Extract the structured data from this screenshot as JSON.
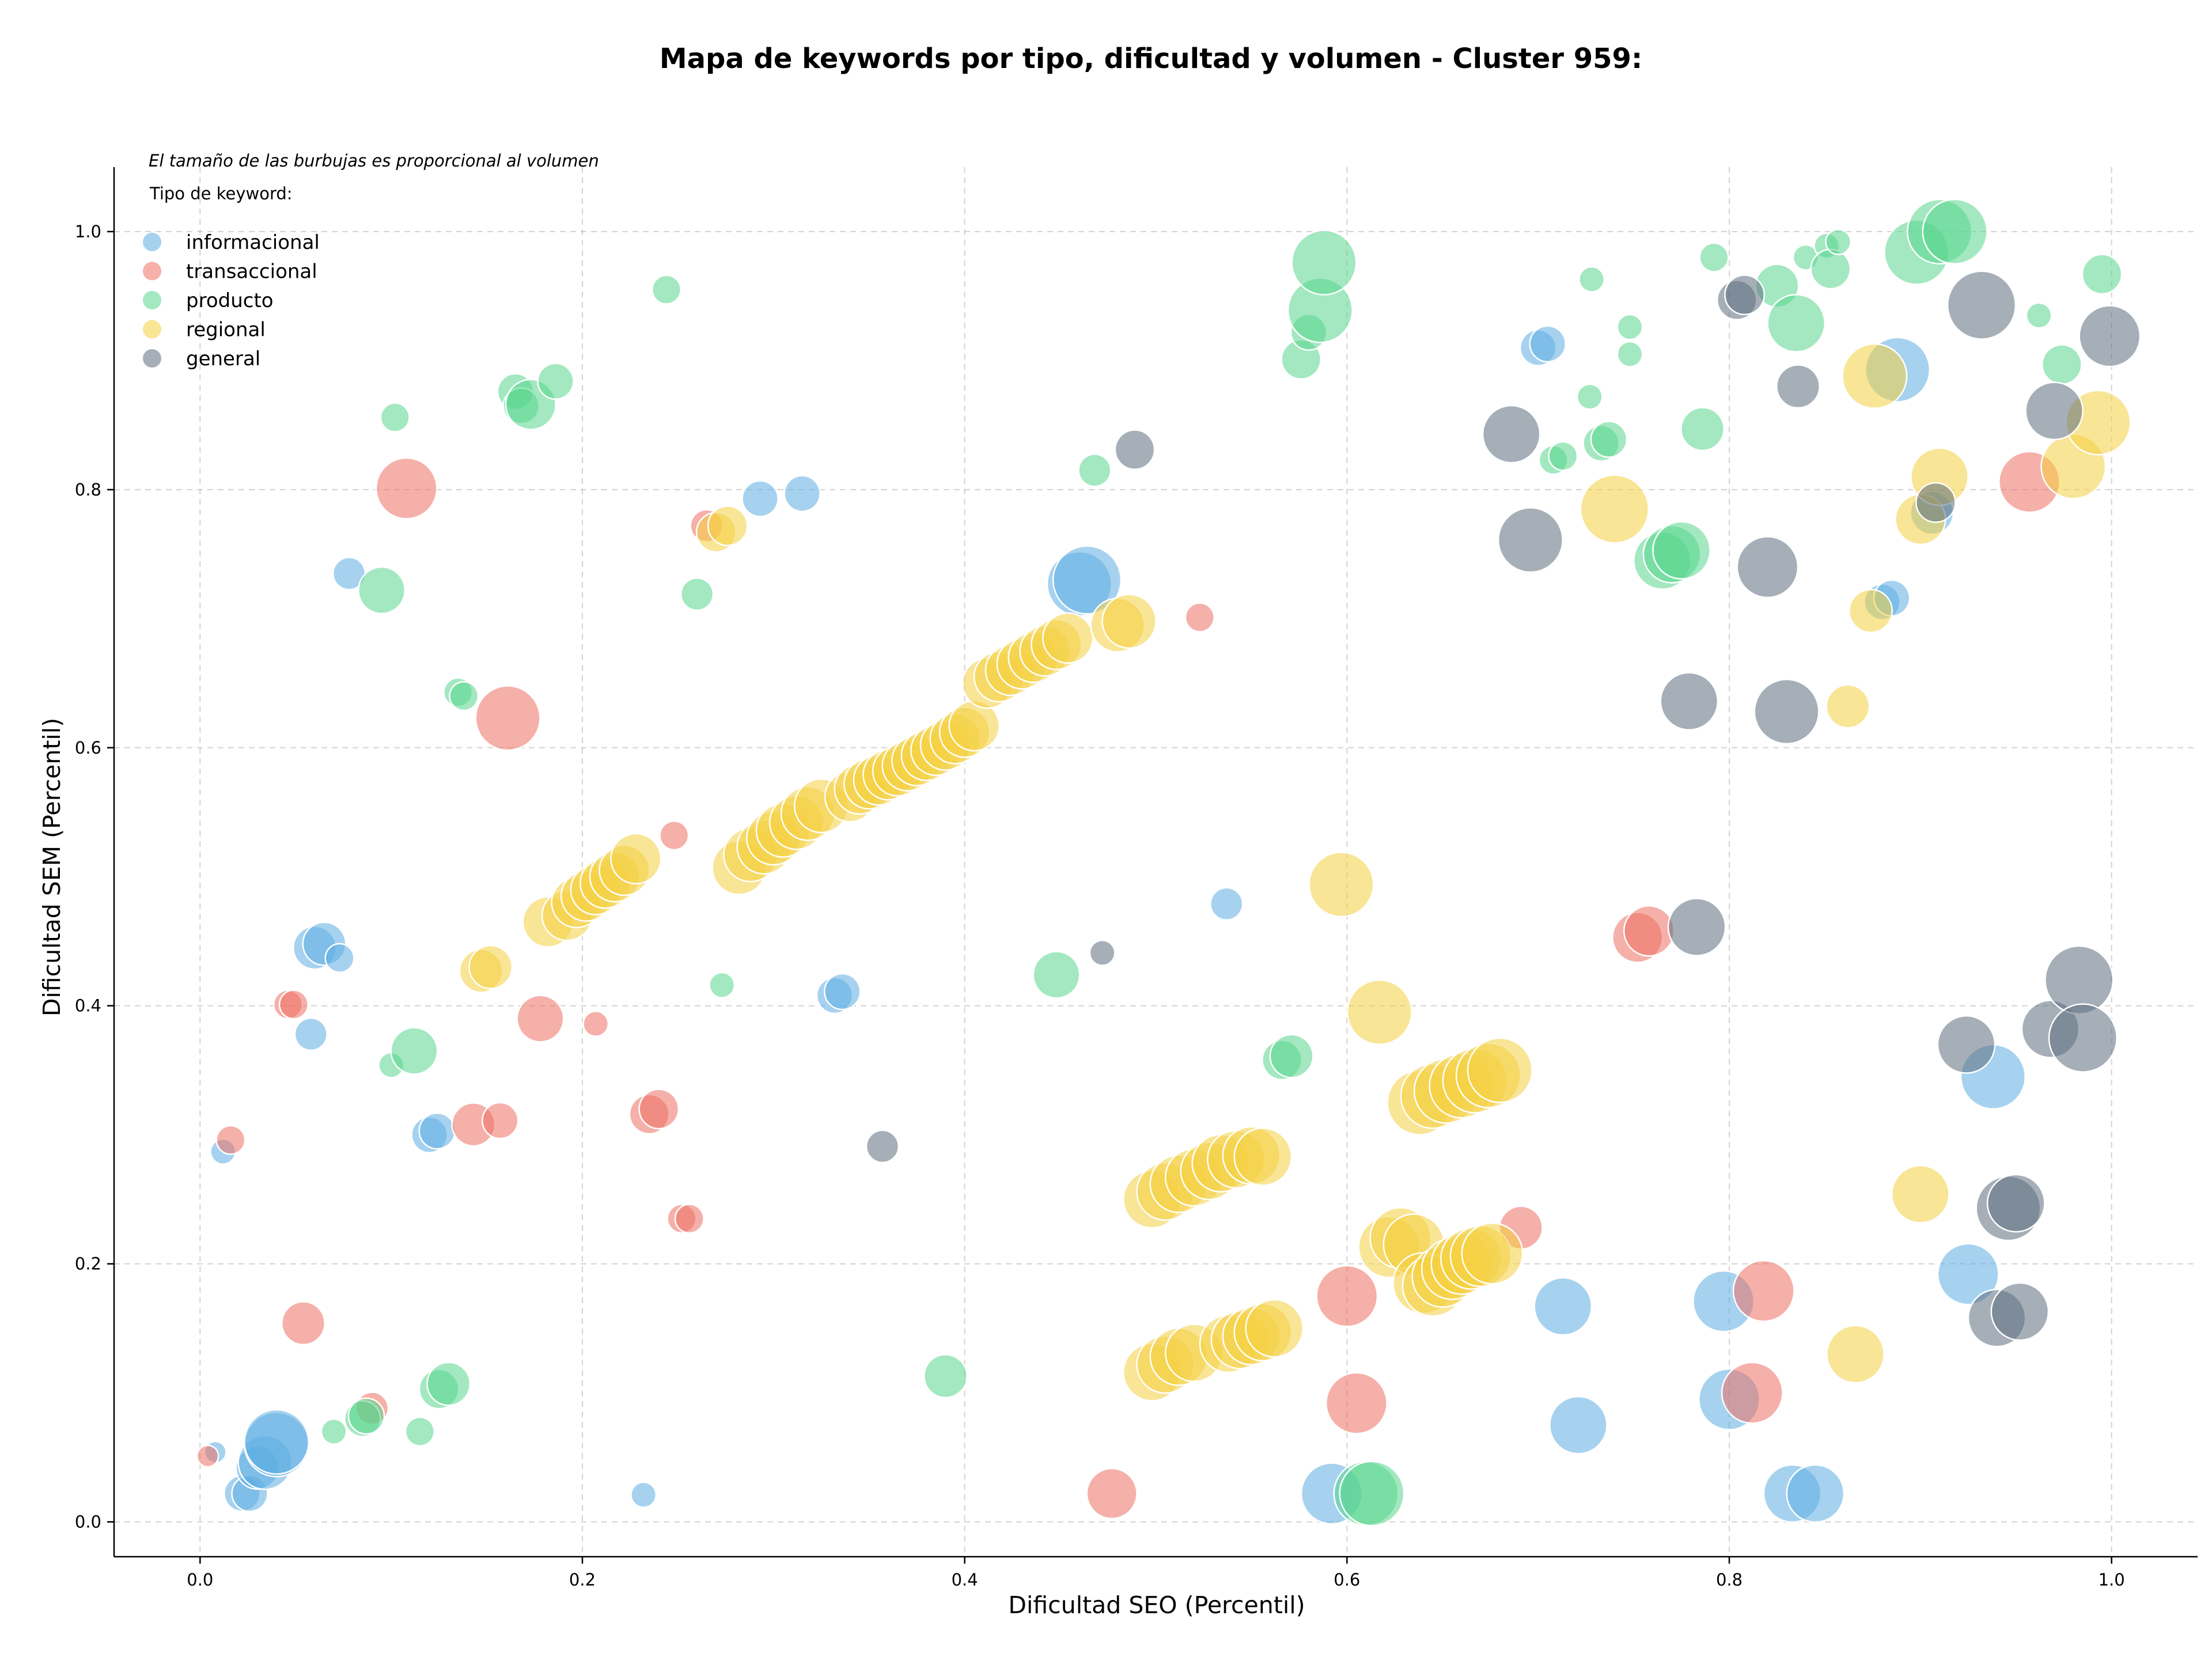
{
  "chart_data": {
    "type": "scatter",
    "title": "Mapa de keywords por tipo, dificultad y volumen - Cluster 959:",
    "xlabel": "Dificultad SEO (Percentil)",
    "ylabel": "Dificultad SEM (Percentil)",
    "xlim": [
      -0.045,
      1.045
    ],
    "ylim": [
      -0.027,
      1.05
    ],
    "x_ticks": [
      "0.0",
      "0.2",
      "0.4",
      "0.6",
      "0.8",
      "1.0"
    ],
    "y_ticks": [
      "0.0",
      "0.2",
      "0.4",
      "0.6",
      "0.8",
      "1.0"
    ],
    "grid": true,
    "legend_position": "top-left",
    "legend_note": "El tamaño de las burbujas es proporcional al volumen",
    "legend_title": "Tipo de keyword:",
    "bubble_alpha": 0.55,
    "series": [
      {
        "name": "informacional",
        "color": "#5DADE2",
        "points": [
          [
            0.008,
            0.054,
            3
          ],
          [
            0.012,
            0.287,
            3.5
          ],
          [
            0.022,
            0.022,
            5
          ],
          [
            0.026,
            0.022,
            5
          ],
          [
            0.03,
            0.042,
            6
          ],
          [
            0.034,
            0.046,
            7.5
          ],
          [
            0.04,
            0.06,
            9
          ],
          [
            0.04,
            0.062,
            9
          ],
          [
            0.06,
            0.445,
            6
          ],
          [
            0.065,
            0.448,
            6
          ],
          [
            0.073,
            0.437,
            4
          ],
          [
            0.058,
            0.378,
            4.5
          ],
          [
            0.078,
            0.735,
            4.5
          ],
          [
            0.12,
            0.3,
            5
          ],
          [
            0.124,
            0.303,
            5
          ],
          [
            0.232,
            0.021,
            3.5
          ],
          [
            0.293,
            0.793,
            5
          ],
          [
            0.315,
            0.797,
            5
          ],
          [
            0.332,
            0.408,
            5
          ],
          [
            0.336,
            0.411,
            5
          ],
          [
            0.46,
            0.727,
            9
          ],
          [
            0.464,
            0.73,
            9.5
          ],
          [
            0.537,
            0.479,
            4.5
          ],
          [
            0.7,
            0.91,
            5
          ],
          [
            0.705,
            0.913,
            5
          ],
          [
            0.713,
            0.167,
            8
          ],
          [
            0.721,
            0.075,
            8
          ],
          [
            0.592,
            0.022,
            8.5
          ],
          [
            0.797,
            0.171,
            8.5
          ],
          [
            0.8,
            0.095,
            8.5
          ],
          [
            0.833,
            0.022,
            8
          ],
          [
            0.845,
            0.022,
            8
          ],
          [
            0.88,
            0.713,
            5
          ],
          [
            0.885,
            0.716,
            5
          ],
          [
            0.888,
            0.893,
            9
          ],
          [
            0.906,
            0.782,
            6
          ],
          [
            0.925,
            0.192,
            8.5
          ],
          [
            0.938,
            0.345,
            9
          ]
        ]
      },
      {
        "name": "transaccional",
        "color": "#EC7063",
        "points": [
          [
            0.004,
            0.051,
            3
          ],
          [
            0.016,
            0.296,
            4
          ],
          [
            0.054,
            0.154,
            6
          ],
          [
            0.046,
            0.401,
            4
          ],
          [
            0.049,
            0.401,
            4
          ],
          [
            0.09,
            0.088,
            4.5
          ],
          [
            0.108,
            0.801,
            8.5
          ],
          [
            0.143,
            0.308,
            6
          ],
          [
            0.157,
            0.311,
            5
          ],
          [
            0.161,
            0.623,
            9
          ],
          [
            0.178,
            0.39,
            6.5
          ],
          [
            0.207,
            0.386,
            3.5
          ],
          [
            0.235,
            0.316,
            5.5
          ],
          [
            0.24,
            0.32,
            5.5
          ],
          [
            0.248,
            0.532,
            4
          ],
          [
            0.252,
            0.235,
            4
          ],
          [
            0.256,
            0.235,
            4
          ],
          [
            0.265,
            0.772,
            4.5
          ],
          [
            0.477,
            0.022,
            7
          ],
          [
            0.523,
            0.701,
            4
          ],
          [
            0.6,
            0.175,
            8.5
          ],
          [
            0.605,
            0.092,
            8.5
          ],
          [
            0.691,
            0.228,
            6
          ],
          [
            0.752,
            0.453,
            7
          ],
          [
            0.758,
            0.458,
            7
          ],
          [
            0.812,
            0.1,
            8.5
          ],
          [
            0.818,
            0.179,
            8.5
          ],
          [
            0.957,
            0.806,
            8.5
          ]
        ]
      },
      {
        "name": "producto",
        "color": "#58D68D",
        "points": [
          [
            0.07,
            0.07,
            3.5
          ],
          [
            0.085,
            0.08,
            5
          ],
          [
            0.087,
            0.082,
            5
          ],
          [
            0.1,
            0.354,
            3.5
          ],
          [
            0.102,
            0.856,
            4
          ],
          [
            0.095,
            0.722,
            6.5
          ],
          [
            0.112,
            0.365,
            6.5
          ],
          [
            0.115,
            0.07,
            4
          ],
          [
            0.125,
            0.103,
            5.5
          ],
          [
            0.13,
            0.107,
            6
          ],
          [
            0.135,
            0.643,
            4
          ],
          [
            0.138,
            0.64,
            4
          ],
          [
            0.165,
            0.876,
            5
          ],
          [
            0.168,
            0.865,
            5
          ],
          [
            0.173,
            0.866,
            7
          ],
          [
            0.186,
            0.884,
            5
          ],
          [
            0.244,
            0.955,
            4
          ],
          [
            0.26,
            0.719,
            4.5
          ],
          [
            0.273,
            0.416,
            3.5
          ],
          [
            0.39,
            0.113,
            6
          ],
          [
            0.448,
            0.424,
            6.5
          ],
          [
            0.468,
            0.815,
            4.5
          ],
          [
            0.566,
            0.358,
            5.5
          ],
          [
            0.571,
            0.361,
            6
          ],
          [
            0.576,
            0.901,
            5.5
          ],
          [
            0.58,
            0.922,
            5
          ],
          [
            0.586,
            0.939,
            9
          ],
          [
            0.588,
            0.976,
            9
          ],
          [
            0.61,
            0.022,
            9
          ],
          [
            0.613,
            0.022,
            9
          ],
          [
            0.708,
            0.823,
            4
          ],
          [
            0.713,
            0.826,
            4
          ],
          [
            0.727,
            0.872,
            3.5
          ],
          [
            0.728,
            0.963,
            3.5
          ],
          [
            0.733,
            0.836,
            5
          ],
          [
            0.737,
            0.839,
            5
          ],
          [
            0.748,
            0.926,
            3.5
          ],
          [
            0.748,
            0.905,
            3.5
          ],
          [
            0.765,
            0.745,
            8
          ],
          [
            0.77,
            0.75,
            8
          ],
          [
            0.775,
            0.753,
            8
          ],
          [
            0.786,
            0.847,
            6
          ],
          [
            0.792,
            0.98,
            4
          ],
          [
            0.825,
            0.958,
            6
          ],
          [
            0.835,
            0.929,
            8
          ],
          [
            0.84,
            0.98,
            3.5
          ],
          [
            0.851,
            0.989,
            3.5
          ],
          [
            0.853,
            0.971,
            5.5
          ],
          [
            0.857,
            0.992,
            3.5
          ],
          [
            0.898,
            0.984,
            9
          ],
          [
            0.91,
            1.0,
            9
          ],
          [
            0.918,
            1.0,
            9
          ],
          [
            0.962,
            0.935,
            3.5
          ],
          [
            0.974,
            0.897,
            5.5
          ],
          [
            0.995,
            0.967,
            5.5
          ]
        ]
      },
      {
        "name": "regional",
        "color": "#F4D03F",
        "points": [
          [
            0.147,
            0.427,
            6
          ],
          [
            0.152,
            0.43,
            6
          ],
          [
            0.182,
            0.465,
            7
          ],
          [
            0.192,
            0.47,
            7
          ],
          [
            0.197,
            0.48,
            7
          ],
          [
            0.202,
            0.485,
            7
          ],
          [
            0.207,
            0.49,
            7
          ],
          [
            0.212,
            0.495,
            7
          ],
          [
            0.217,
            0.5,
            7
          ],
          [
            0.222,
            0.505,
            7
          ],
          [
            0.228,
            0.514,
            7
          ],
          [
            0.27,
            0.767,
            5.5
          ],
          [
            0.276,
            0.772,
            5.5
          ],
          [
            0.282,
            0.507,
            7.5
          ],
          [
            0.288,
            0.517,
            7.5
          ],
          [
            0.295,
            0.523,
            7.5
          ],
          [
            0.3,
            0.53,
            7.5
          ],
          [
            0.305,
            0.536,
            7.5
          ],
          [
            0.312,
            0.542,
            7.5
          ],
          [
            0.318,
            0.549,
            7.5
          ],
          [
            0.325,
            0.555,
            7.5
          ],
          [
            0.34,
            0.562,
            7
          ],
          [
            0.345,
            0.568,
            7
          ],
          [
            0.35,
            0.572,
            7
          ],
          [
            0.355,
            0.575,
            7
          ],
          [
            0.36,
            0.579,
            7
          ],
          [
            0.365,
            0.582,
            7
          ],
          [
            0.37,
            0.586,
            7
          ],
          [
            0.375,
            0.59,
            7
          ],
          [
            0.38,
            0.594,
            7
          ],
          [
            0.385,
            0.598,
            7
          ],
          [
            0.39,
            0.602,
            7
          ],
          [
            0.395,
            0.607,
            7
          ],
          [
            0.4,
            0.612,
            7
          ],
          [
            0.405,
            0.617,
            7
          ],
          [
            0.412,
            0.65,
            7
          ],
          [
            0.418,
            0.655,
            7
          ],
          [
            0.424,
            0.66,
            7
          ],
          [
            0.43,
            0.665,
            7
          ],
          [
            0.436,
            0.67,
            7
          ],
          [
            0.442,
            0.675,
            7
          ],
          [
            0.448,
            0.68,
            7
          ],
          [
            0.454,
            0.685,
            7
          ],
          [
            0.48,
            0.695,
            7.5
          ],
          [
            0.486,
            0.698,
            7.5
          ],
          [
            0.498,
            0.25,
            8
          ],
          [
            0.505,
            0.256,
            8
          ],
          [
            0.512,
            0.262,
            8
          ],
          [
            0.52,
            0.267,
            8
          ],
          [
            0.528,
            0.272,
            8
          ],
          [
            0.534,
            0.278,
            8
          ],
          [
            0.542,
            0.281,
            8
          ],
          [
            0.55,
            0.284,
            8
          ],
          [
            0.556,
            0.283,
            8
          ],
          [
            0.498,
            0.116,
            8
          ],
          [
            0.505,
            0.122,
            8
          ],
          [
            0.512,
            0.128,
            8
          ],
          [
            0.52,
            0.131,
            8
          ],
          [
            0.538,
            0.138,
            8
          ],
          [
            0.544,
            0.141,
            8
          ],
          [
            0.55,
            0.144,
            8
          ],
          [
            0.556,
            0.147,
            8
          ],
          [
            0.562,
            0.15,
            8
          ],
          [
            0.597,
            0.494,
            9
          ],
          [
            0.617,
            0.395,
            9
          ],
          [
            0.622,
            0.213,
            8.5
          ],
          [
            0.628,
            0.22,
            8.5
          ],
          [
            0.635,
            0.215,
            8.5
          ],
          [
            0.64,
            0.185,
            8.5
          ],
          [
            0.645,
            0.183,
            8.5
          ],
          [
            0.65,
            0.19,
            8.5
          ],
          [
            0.655,
            0.196,
            8.5
          ],
          [
            0.66,
            0.2,
            8.5
          ],
          [
            0.665,
            0.204,
            8.5
          ],
          [
            0.67,
            0.206,
            8.5
          ],
          [
            0.676,
            0.208,
            8.5
          ],
          [
            0.638,
            0.325,
            9
          ],
          [
            0.645,
            0.33,
            9
          ],
          [
            0.652,
            0.334,
            9
          ],
          [
            0.66,
            0.338,
            9
          ],
          [
            0.667,
            0.342,
            9
          ],
          [
            0.674,
            0.346,
            9
          ],
          [
            0.68,
            0.35,
            9
          ],
          [
            0.74,
            0.785,
            9.5
          ],
          [
            0.862,
            0.632,
            6
          ],
          [
            0.866,
            0.13,
            8
          ],
          [
            0.874,
            0.706,
            6
          ],
          [
            0.876,
            0.888,
            9
          ],
          [
            0.9,
            0.254,
            8
          ],
          [
            0.9,
            0.777,
            7
          ],
          [
            0.91,
            0.81,
            8
          ],
          [
            0.98,
            0.818,
            9
          ],
          [
            0.993,
            0.852,
            9
          ]
        ]
      },
      {
        "name": "general",
        "color": "#5D6D7E",
        "points": [
          [
            0.357,
            0.291,
            4.5
          ],
          [
            0.472,
            0.441,
            3.5
          ],
          [
            0.489,
            0.831,
            5.5
          ],
          [
            0.686,
            0.843,
            8
          ],
          [
            0.696,
            0.761,
            9
          ],
          [
            0.779,
            0.636,
            8
          ],
          [
            0.783,
            0.461,
            8
          ],
          [
            0.804,
            0.947,
            5.5
          ],
          [
            0.808,
            0.951,
            5.5
          ],
          [
            0.82,
            0.74,
            8.5
          ],
          [
            0.83,
            0.628,
            9
          ],
          [
            0.836,
            0.88,
            6
          ],
          [
            0.908,
            0.79,
            5.5
          ],
          [
            0.924,
            0.37,
            8
          ],
          [
            0.932,
            0.943,
            9.5
          ],
          [
            0.94,
            0.158,
            8
          ],
          [
            0.946,
            0.243,
            9
          ],
          [
            0.95,
            0.247,
            8
          ],
          [
            0.952,
            0.163,
            8
          ],
          [
            0.968,
            0.382,
            8
          ],
          [
            0.97,
            0.861,
            8
          ],
          [
            0.983,
            0.42,
            9.5
          ],
          [
            0.985,
            0.375,
            9.5
          ],
          [
            0.999,
            0.919,
            8.5
          ]
        ]
      }
    ]
  }
}
